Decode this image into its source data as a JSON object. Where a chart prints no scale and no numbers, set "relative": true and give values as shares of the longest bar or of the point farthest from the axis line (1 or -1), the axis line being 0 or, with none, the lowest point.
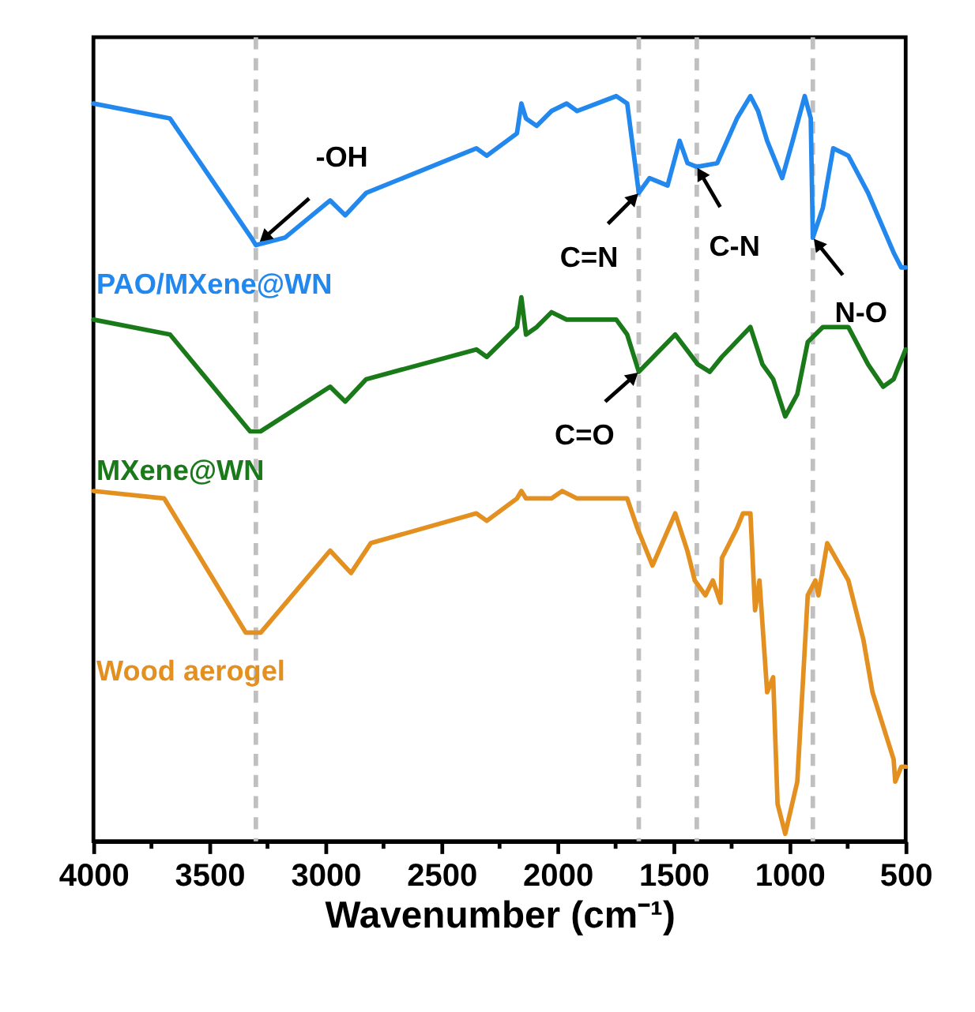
{
  "chart_data": {
    "type": "line",
    "relative": true,
    "xlabel": "Wavenumber (cm⁻¹)",
    "xlim": [
      4000,
      500
    ],
    "xticks": [
      4000,
      {
        "value": 3750,
        "label": null
      },
      3500,
      {
        "value": 3250,
        "label": null
      },
      3000,
      {
        "value": 2750,
        "label": null
      },
      2500,
      {
        "value": 2250,
        "label": null
      },
      2000,
      {
        "value": 1750,
        "label": null
      },
      1500,
      {
        "value": 1250,
        "label": null
      },
      1000,
      {
        "value": 750,
        "label": null
      },
      500
    ],
    "legend": false,
    "grid": false,
    "line_style": "solid",
    "marker": "none",
    "series": [
      {
        "name": "PAO/MXene@WN",
        "color": "#2288ee",
        "x": [
          4000,
          3670,
          3320,
          3300,
          3175,
          2980,
          2915,
          2825,
          2350,
          2305,
          2175,
          2156,
          2136,
          2090,
          2026,
          1961,
          1916,
          1747,
          1700,
          1650,
          1604,
          1526,
          1474,
          1440,
          1400,
          1312,
          1227,
          1169,
          1136,
          1097,
          1032,
          987,
          935,
          909,
          900,
          857,
          812,
          747,
          662,
          552,
          519,
          500
        ],
        "values": [
          0.99,
          0.97,
          0.81,
          0.8,
          0.81,
          0.86,
          0.84,
          0.87,
          0.93,
          0.92,
          0.95,
          0.99,
          0.97,
          0.96,
          0.98,
          0.99,
          0.98,
          1.0,
          0.99,
          0.87,
          0.89,
          0.88,
          0.94,
          0.91,
          0.905,
          0.91,
          0.97,
          1.0,
          0.98,
          0.94,
          0.89,
          0.94,
          1.0,
          0.97,
          0.81,
          0.85,
          0.93,
          0.92,
          0.87,
          0.79,
          0.77,
          0.77
        ]
      },
      {
        "name": "MXene@WN",
        "color": "#1a7a1a",
        "x": [
          4000,
          3670,
          3325,
          3280,
          2980,
          2915,
          2825,
          2350,
          2305,
          2175,
          2156,
          2136,
          2090,
          2026,
          1961,
          1747,
          1700,
          1650,
          1493,
          1396,
          1344,
          1292,
          1169,
          1117,
          1071,
          1019,
          967,
          922,
          857,
          747,
          662,
          597,
          552,
          500
        ],
        "values": [
          0.7,
          0.68,
          0.55,
          0.55,
          0.61,
          0.59,
          0.62,
          0.66,
          0.65,
          0.69,
          0.73,
          0.68,
          0.69,
          0.71,
          0.7,
          0.7,
          0.68,
          0.63,
          0.68,
          0.64,
          0.63,
          0.65,
          0.69,
          0.64,
          0.62,
          0.57,
          0.6,
          0.67,
          0.69,
          0.69,
          0.64,
          0.61,
          0.62,
          0.66
        ]
      },
      {
        "name": "Wood aerogel",
        "color": "#e39020",
        "x": [
          4000,
          3695,
          3344,
          3279,
          2980,
          2890,
          2805,
          2350,
          2305,
          2175,
          2156,
          2136,
          2026,
          1980,
          1916,
          1747,
          1700,
          1656,
          1591,
          1493,
          1441,
          1409,
          1363,
          1331,
          1298,
          1292,
          1227,
          1201,
          1169,
          1149,
          1130,
          1097,
          1071,
          1052,
          1019,
          967,
          922,
          889,
          876,
          838,
          747,
          682,
          643,
          552,
          545,
          519,
          500
        ],
        "values": [
          0.47,
          0.46,
          0.28,
          0.28,
          0.39,
          0.36,
          0.4,
          0.44,
          0.43,
          0.46,
          0.47,
          0.46,
          0.46,
          0.47,
          0.46,
          0.46,
          0.46,
          0.42,
          0.37,
          0.44,
          0.39,
          0.35,
          0.33,
          0.35,
          0.32,
          0.38,
          0.42,
          0.44,
          0.44,
          0.31,
          0.35,
          0.2,
          0.22,
          0.05,
          0.01,
          0.08,
          0.33,
          0.35,
          0.33,
          0.4,
          0.35,
          0.27,
          0.2,
          0.11,
          0.08,
          0.1,
          0.1
        ]
      }
    ],
    "ref_lines": [
      {
        "axis": "x",
        "value": 3300,
        "color": "#c0c0c0",
        "line_style": "dashed"
      },
      {
        "axis": "x",
        "value": 1650,
        "color": "#c0c0c0",
        "line_style": "dashed"
      },
      {
        "axis": "x",
        "value": 1400,
        "color": "#c0c0c0",
        "line_style": "dashed"
      },
      {
        "axis": "x",
        "value": 900,
        "color": "#c0c0c0",
        "line_style": "dashed"
      }
    ],
    "annotations": [
      {
        "text": "-OH",
        "x": 3300,
        "y": 0.8
      },
      {
        "text": "C=N",
        "x": 1650,
        "y": 0.87
      },
      {
        "text": "C-N",
        "x": 1400,
        "y": 0.905
      },
      {
        "text": "N-O",
        "x": 900,
        "y": 0.81
      },
      {
        "text": "C=O",
        "x": 1650,
        "y": 0.63
      }
    ]
  }
}
